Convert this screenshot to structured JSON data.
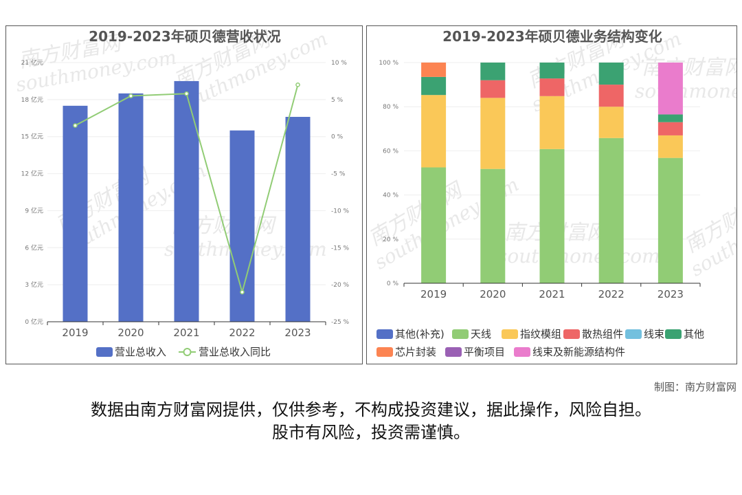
{
  "credit": "制图：南方财富网",
  "disclaimer": {
    "line1": "数据由南方财富网提供，仅供参考，不构成投资建议，据此操作，风险自担。",
    "line2": "股市有风险，投资需谨慎。"
  },
  "watermark": {
    "cn": "南方财富网",
    "en": "southmoney.com"
  },
  "chart_data": [
    {
      "type": "bar",
      "title": "2019-2023年硕贝德营收状况",
      "categories": [
        "2019",
        "2020",
        "2021",
        "2022",
        "2023"
      ],
      "y_left": {
        "ylim": [
          0,
          21
        ],
        "ticks": [
          "0 亿元",
          "3 亿元",
          "6 亿元",
          "9 亿元",
          "12 亿元",
          "15 亿元",
          "18 亿元",
          "21 亿元"
        ]
      },
      "y_right": {
        "ylim": [
          -25,
          10
        ],
        "ticks": [
          "-25 %",
          "-20 %",
          "-15 %",
          "-10 %",
          "-5 %",
          "0 %",
          "5 %",
          "10 %"
        ]
      },
      "series": [
        {
          "name": "营业总收入",
          "type": "bar",
          "axis": "left",
          "color": "#5470c6",
          "values": [
            17.5,
            18.5,
            19.5,
            15.5,
            16.6
          ]
        },
        {
          "name": "营业总收入同比",
          "type": "line",
          "axis": "right",
          "color": "#91cc75",
          "values": [
            1.5,
            5.5,
            5.8,
            -21.0,
            7.0
          ]
        }
      ],
      "legend_position": "bottom"
    },
    {
      "type": "bar",
      "stacked": true,
      "title": "2019-2023年硕贝德业务结构变化",
      "categories": [
        "2019",
        "2020",
        "2021",
        "2022",
        "2023"
      ],
      "ylim": [
        0,
        100
      ],
      "yticks": [
        "0 %",
        "20 %",
        "40 %",
        "60 %",
        "80 %",
        "100 %"
      ],
      "series": [
        {
          "name": "其他(补充)",
          "color": "#5470c6",
          "values": [
            0,
            0,
            0,
            0,
            0
          ]
        },
        {
          "name": "天线",
          "color": "#91cc75",
          "values": [
            52.5,
            51.8,
            60.8,
            65.8,
            56.8
          ]
        },
        {
          "name": "指纹模组",
          "color": "#fac858",
          "values": [
            32.8,
            32.2,
            24.0,
            14.2,
            10.2
          ]
        },
        {
          "name": "散热组件",
          "color": "#ee6666",
          "values": [
            0,
            8.0,
            8.0,
            10.0,
            6.0
          ]
        },
        {
          "name": "线束",
          "color": "#73c0de",
          "values": [
            0,
            0,
            0,
            0,
            0
          ]
        },
        {
          "name": "其他",
          "color": "#3ba272",
          "values": [
            8.2,
            8.0,
            7.2,
            10.0,
            3.5
          ]
        },
        {
          "name": "芯片封装",
          "color": "#fc8452",
          "values": [
            6.5,
            0,
            0,
            0,
            0
          ]
        },
        {
          "name": "平衡项目",
          "color": "#9a60b4",
          "values": [
            0,
            0,
            0,
            0,
            0
          ]
        },
        {
          "name": "线束及新能源结构件",
          "color": "#ea7ccc",
          "values": [
            0,
            0,
            0,
            0,
            23.5
          ]
        }
      ],
      "legend_position": "bottom"
    }
  ]
}
